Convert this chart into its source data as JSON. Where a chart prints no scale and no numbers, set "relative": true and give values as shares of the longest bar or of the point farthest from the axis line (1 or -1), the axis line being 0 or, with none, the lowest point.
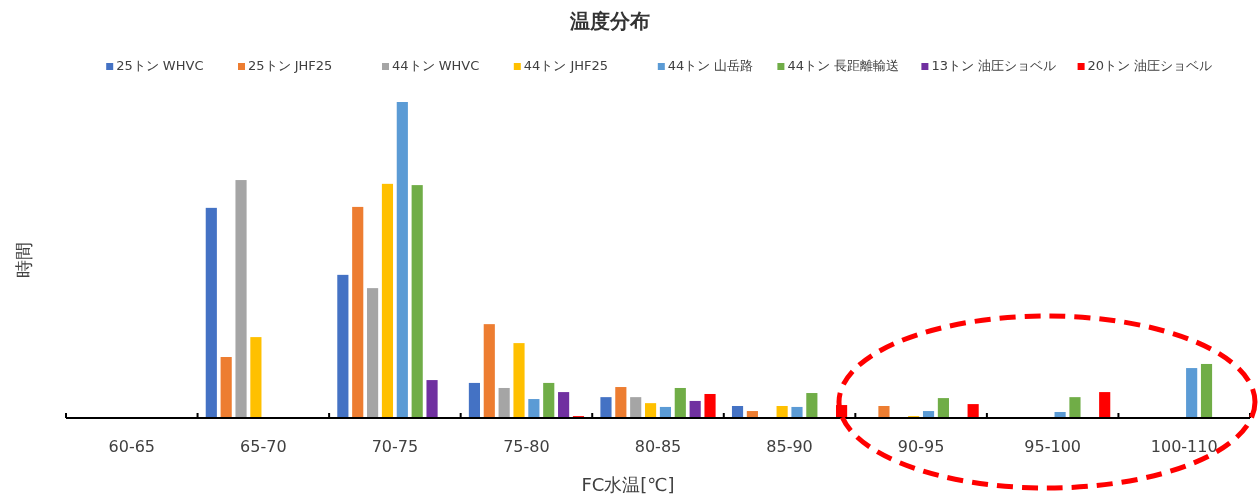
{
  "chart_data": {
    "type": "bar",
    "title": "温度分布",
    "xlabel": "FC水温[℃]",
    "ylabel": "時間",
    "relative": true,
    "legend": "top",
    "grid": false,
    "categories": [
      "60-65",
      "65-70",
      "70-75",
      "75-80",
      "80-85",
      "85-90",
      "90-95",
      "95-100",
      "100-110"
    ],
    "series": [
      {
        "name": "25トン WHVC",
        "color": "#4472c4",
        "values": [
          null,
          0.665,
          0.453,
          0.111,
          0.066,
          0.038,
          null,
          null,
          null
        ]
      },
      {
        "name": "25トン JHF25",
        "color": "#ed7d31",
        "values": [
          null,
          0.193,
          0.668,
          0.297,
          0.098,
          0.022,
          0.038,
          null,
          null
        ]
      },
      {
        "name": "44トン WHVC",
        "color": "#a5a5a5",
        "values": [
          null,
          0.753,
          0.411,
          0.095,
          0.066,
          null,
          null,
          null,
          null
        ]
      },
      {
        "name": "44トン JHF25",
        "color": "#ffc000",
        "values": [
          null,
          0.256,
          0.741,
          0.237,
          0.047,
          0.038,
          0.006,
          null,
          null
        ]
      },
      {
        "name": "44トン 山岳路",
        "color": "#5b9bd5",
        "values": [
          null,
          null,
          1,
          0.06,
          0.035,
          0.035,
          0.022,
          0.019,
          0.158
        ]
      },
      {
        "name": "44トン 長距離輸送",
        "color": "#70ad47",
        "values": [
          null,
          null,
          0.737,
          0.111,
          0.095,
          0.079,
          0.063,
          0.066,
          0.171
        ]
      },
      {
        "name": "13トン 油圧ショベル",
        "color": "#7030a0",
        "values": [
          null,
          null,
          0.12,
          0.082,
          0.054,
          null,
          null,
          null,
          null
        ]
      },
      {
        "name": "20トン 油圧ショベル",
        "color": "#ff0000",
        "values": [
          null,
          null,
          null,
          0.006,
          0.076,
          0.041,
          0.044,
          0.082,
          null
        ]
      }
    ]
  }
}
